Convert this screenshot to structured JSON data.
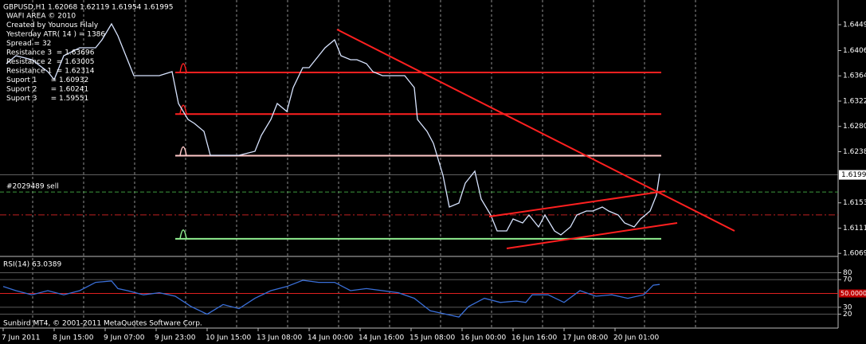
{
  "chart_data": [
    {
      "type": "line",
      "title": "GBPUSD,H1  1.62068 1.62119 1.61954 1.61995",
      "x": [
        1,
        4,
        9,
        14,
        16,
        19,
        24,
        29,
        31,
        34,
        36,
        39,
        41,
        44,
        49,
        53,
        55,
        58,
        60,
        63,
        65,
        69,
        74,
        79,
        81,
        84,
        86,
        89,
        91,
        94,
        96,
        99,
        101,
        104,
        106,
        109,
        111,
        114,
        116,
        119,
        124,
        126,
        129,
        130,
        133,
        135,
        138,
        140,
        143,
        145,
        148,
        150,
        153,
        155,
        158,
        160,
        163,
        165,
        168,
        170,
        173,
        175,
        178,
        180,
        183,
        185,
        188,
        190,
        193,
        195,
        198,
        200,
        203,
        205,
        206
      ],
      "values": [
        1.63842,
        1.63974,
        1.63908,
        1.63709,
        1.63577,
        1.63974,
        1.64106,
        1.64106,
        1.64239,
        1.64503,
        1.64305,
        1.63908,
        1.63643,
        1.63643,
        1.63643,
        1.63709,
        1.6318,
        1.62916,
        1.6285,
        1.62717,
        1.6232,
        1.6232,
        1.6232,
        1.62386,
        1.62651,
        1.62916,
        1.6318,
        1.63048,
        1.63445,
        1.63776,
        1.63776,
        1.63974,
        1.64106,
        1.64239,
        1.63974,
        1.63908,
        1.63908,
        1.63842,
        1.63709,
        1.63643,
        1.63643,
        1.63643,
        1.63445,
        1.62916,
        1.62717,
        1.62518,
        1.61989,
        1.6146,
        1.61526,
        1.61857,
        1.62055,
        1.61592,
        1.61328,
        1.61063,
        1.61063,
        1.61262,
        1.61196,
        1.61328,
        1.6113,
        1.61328,
        1.61063,
        1.60997,
        1.6113,
        1.61328,
        1.61394,
        1.61394,
        1.6146,
        1.61394,
        1.61328,
        1.61196,
        1.6113,
        1.61262,
        1.61394,
        1.61659,
        1.62016
      ],
      "color": "#d8e4ff",
      "xlim": [
        -1,
        262
      ],
      "ylim": [
        1.6064,
        1.649
      ],
      "yticks": [
        {
          "value": 1.6449,
          "label": "1.64490"
        },
        {
          "value": 1.6406,
          "label": "1.64060"
        },
        {
          "value": 1.6364,
          "label": "1.63640"
        },
        {
          "value": 1.6322,
          "label": "1.63220"
        },
        {
          "value": 1.628,
          "label": "1.62800"
        },
        {
          "value": 1.6238,
          "label": "1.62380"
        },
        {
          "value": 1.6153,
          "label": "1.61530"
        },
        {
          "value": 1.6111,
          "label": "1.61110"
        },
        {
          "value": 1.6069,
          "label": "1.60690"
        }
      ],
      "xticks": [
        {
          "value": 0,
          "label": "7 Jun 2011"
        },
        {
          "value": 16,
          "label": "8 Jun 15:00"
        },
        {
          "value": 32,
          "label": "9 Jun 07:00"
        },
        {
          "value": 48,
          "label": "9 Jun 23:00"
        },
        {
          "value": 64,
          "label": "10 Jun 15:00"
        },
        {
          "value": 80,
          "label": "13 Jun 08:00"
        },
        {
          "value": 96,
          "label": "14 Jun 00:00"
        },
        {
          "value": 112,
          "label": "14 Jun 16:00"
        },
        {
          "value": 128,
          "label": "15 Jun 08:00"
        },
        {
          "value": 144,
          "label": "16 Jun 00:00"
        },
        {
          "value": 160,
          "label": "16 Jun 16:00"
        },
        {
          "value": 176,
          "label": "17 Jun 08:00"
        },
        {
          "value": 192,
          "label": "20 Jun 01:00"
        }
      ],
      "current_price": 1.61995,
      "levels": [
        {
          "value": 1.63696,
          "color": "#ff2020"
        },
        {
          "value": 1.63005,
          "color": "#ff2020"
        },
        {
          "value": 1.62314,
          "color": "#ffc8c8"
        },
        {
          "value": 1.60932,
          "color": "#90ee90"
        }
      ],
      "order": {
        "label": "#2029489 sell",
        "value": 1.6171,
        "color": "#3c9a3c"
      },
      "stop_line": {
        "value": 1.6133,
        "color": "#c02020"
      }
    },
    {
      "type": "line",
      "title": "RSI(14) 63.0389",
      "x": [
        0,
        4,
        9,
        14,
        19,
        24,
        29,
        34,
        36,
        39,
        44,
        49,
        54,
        59,
        64,
        69,
        74,
        79,
        84,
        89,
        94,
        99,
        104,
        109,
        114,
        119,
        124,
        129,
        134,
        139,
        143,
        146,
        151,
        156,
        161,
        164,
        166,
        171,
        176,
        181,
        186,
        191,
        196,
        201,
        204,
        206
      ],
      "values": [
        60,
        54,
        48,
        54,
        48,
        54,
        66,
        68,
        57,
        54,
        48,
        51,
        46,
        31,
        20,
        34,
        28,
        43,
        54,
        60,
        69,
        66,
        66,
        54,
        57,
        54,
        51,
        43,
        25,
        20,
        16,
        31,
        43,
        37,
        39,
        37,
        48,
        48,
        37,
        54,
        46,
        48,
        43,
        48,
        62,
        63
      ],
      "color": "#3a6fd8",
      "xlim": [
        -1,
        262
      ],
      "ylim": [
        0,
        100
      ],
      "yticks": [
        20,
        30,
        70,
        80
      ],
      "midline": {
        "value": 50,
        "label": "50.0000"
      }
    }
  ],
  "info": [
    "WAFI AREA © 2010",
    "Created by Younous Filaly",
    "Yesterday ATR( 14 ) = 1386",
    "Spread = 32",
    "Resistance 3  = 1.63696",
    "Resistance 2  = 1.63005",
    "Resistance 1  = 1.62314",
    "Suport 1      = 1.60932",
    "Suport 2      = 1.60241",
    "Suport 3      = 1.59551"
  ],
  "footer": "Sunbird MT4, © 2001-2011 MetaQuotes Software Corp."
}
